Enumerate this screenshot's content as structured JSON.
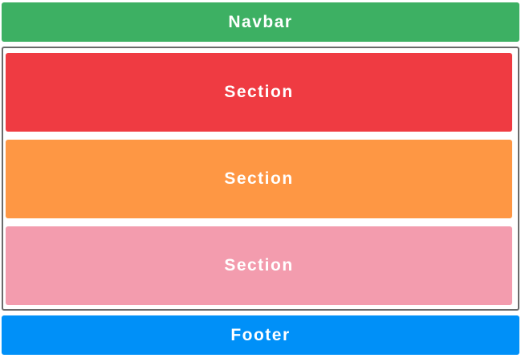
{
  "navbar": {
    "label": "Navbar",
    "color": "#3db063"
  },
  "main": {
    "border_color": "#6a6a6a",
    "sections": [
      {
        "label": "Section",
        "color": "#ef3b42"
      },
      {
        "label": "Section",
        "color": "#fe9744"
      },
      {
        "label": "Section",
        "color": "#f39cae"
      }
    ]
  },
  "footer": {
    "label": "Footer",
    "color": "#0090f8"
  }
}
